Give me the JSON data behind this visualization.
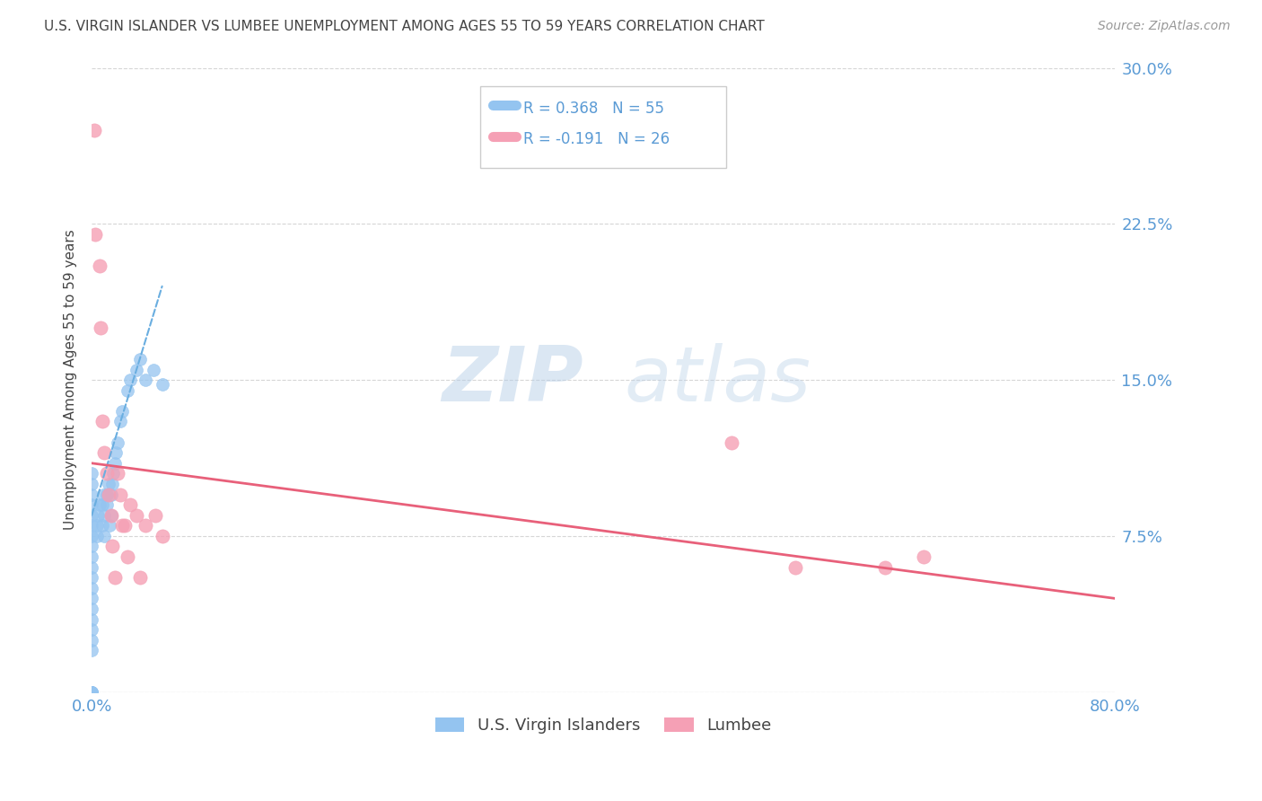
{
  "title": "U.S. VIRGIN ISLANDER VS LUMBEE UNEMPLOYMENT AMONG AGES 55 TO 59 YEARS CORRELATION CHART",
  "source": "Source: ZipAtlas.com",
  "ylabel": "Unemployment Among Ages 55 to 59 years",
  "xlim": [
    0,
    0.8
  ],
  "ylim": [
    0,
    0.3
  ],
  "yticks": [
    0.0,
    0.075,
    0.15,
    0.225,
    0.3
  ],
  "ytick_labels": [
    "",
    "7.5%",
    "15.0%",
    "22.5%",
    "30.0%"
  ],
  "xticks": [
    0.0,
    0.1,
    0.2,
    0.3,
    0.4,
    0.5,
    0.6,
    0.7,
    0.8
  ],
  "xtick_labels": [
    "0.0%",
    "",
    "",
    "",
    "",
    "",
    "",
    "",
    "80.0%"
  ],
  "vi_r": 0.368,
  "vi_n": 55,
  "lumbee_r": -0.191,
  "lumbee_n": 26,
  "vi_color": "#94c4f0",
  "lumbee_color": "#f5a0b5",
  "vi_line_color": "#6aaee0",
  "lumbee_line_color": "#e8607a",
  "background_color": "#ffffff",
  "grid_color": "#cccccc",
  "title_color": "#444444",
  "axis_color": "#5b9bd5",
  "watermark_zip": "ZIP",
  "watermark_atlas": "atlas",
  "vi_scatter_x": [
    0.0,
    0.0,
    0.0,
    0.0,
    0.0,
    0.0,
    0.0,
    0.0,
    0.0,
    0.0,
    0.0,
    0.0,
    0.0,
    0.0,
    0.0,
    0.0,
    0.0,
    0.0,
    0.0,
    0.0,
    0.0,
    0.0,
    0.0,
    0.0,
    0.0,
    0.0,
    0.004,
    0.004,
    0.005,
    0.006,
    0.008,
    0.008,
    0.009,
    0.01,
    0.01,
    0.012,
    0.012,
    0.013,
    0.014,
    0.015,
    0.015,
    0.016,
    0.017,
    0.018,
    0.019,
    0.02,
    0.022,
    0.024,
    0.028,
    0.03,
    0.035,
    0.038,
    0.042,
    0.048,
    0.055
  ],
  "vi_scatter_y": [
    0.0,
    0.0,
    0.0,
    0.0,
    0.0,
    0.0,
    0.0,
    0.0,
    0.02,
    0.025,
    0.03,
    0.035,
    0.04,
    0.045,
    0.05,
    0.055,
    0.06,
    0.065,
    0.07,
    0.075,
    0.08,
    0.085,
    0.09,
    0.095,
    0.1,
    0.105,
    0.075,
    0.08,
    0.085,
    0.09,
    0.08,
    0.09,
    0.095,
    0.075,
    0.085,
    0.09,
    0.095,
    0.1,
    0.08,
    0.085,
    0.095,
    0.1,
    0.105,
    0.11,
    0.115,
    0.12,
    0.13,
    0.135,
    0.145,
    0.15,
    0.155,
    0.16,
    0.15,
    0.155,
    0.148
  ],
  "lumbee_scatter_x": [
    0.002,
    0.003,
    0.006,
    0.007,
    0.008,
    0.01,
    0.012,
    0.013,
    0.015,
    0.016,
    0.018,
    0.02,
    0.022,
    0.024,
    0.026,
    0.028,
    0.03,
    0.035,
    0.038,
    0.042,
    0.05,
    0.055,
    0.5,
    0.55,
    0.62,
    0.65
  ],
  "lumbee_scatter_y": [
    0.27,
    0.22,
    0.205,
    0.175,
    0.13,
    0.115,
    0.105,
    0.095,
    0.085,
    0.07,
    0.055,
    0.105,
    0.095,
    0.08,
    0.08,
    0.065,
    0.09,
    0.085,
    0.055,
    0.08,
    0.085,
    0.075,
    0.12,
    0.06,
    0.06,
    0.065
  ],
  "vi_trendline_x": [
    0.0,
    0.055
  ],
  "vi_trendline_y": [
    0.085,
    0.195
  ],
  "lumbee_trendline_x": [
    0.0,
    0.8
  ],
  "lumbee_trendline_y": [
    0.11,
    0.045
  ]
}
